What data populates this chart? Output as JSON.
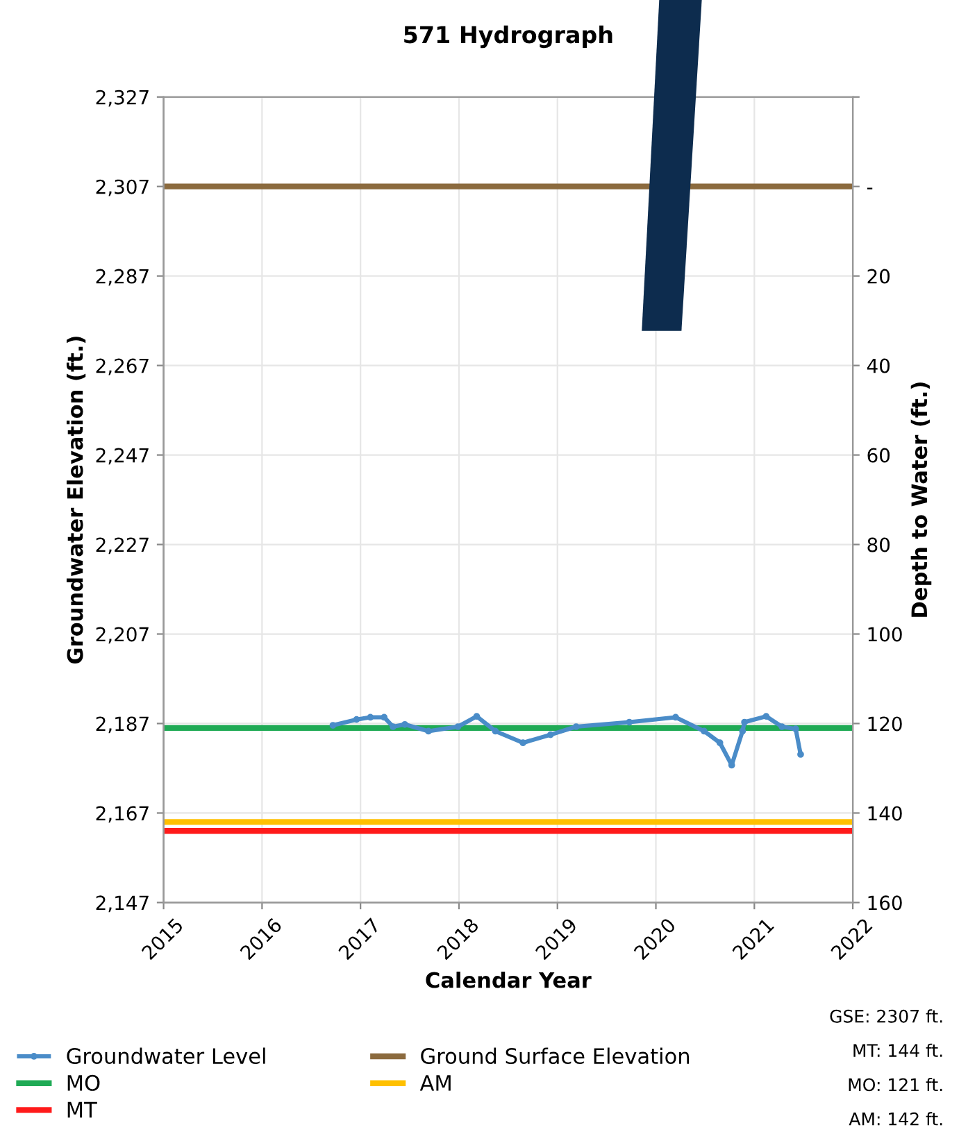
{
  "chart_data": {
    "type": "line",
    "title": "571 Hydrograph",
    "xlabel": "Calendar Year",
    "ylabel": "Groundwater Elevation (ft.)",
    "y2label": "Depth to Water (ft.)",
    "series": [
      {
        "name": "Groundwater Level",
        "color": "#4a8cc8",
        "marker": "circle",
        "x": [
          2016.72,
          2016.96,
          2017.1,
          2017.24,
          2017.33,
          2017.45,
          2017.69,
          2017.99,
          2018.18,
          2018.37,
          2018.65,
          2018.93,
          2019.19,
          2019.73,
          2020.2,
          2020.49,
          2020.65,
          2020.77,
          2020.88,
          2020.9,
          2021.12,
          2021.28,
          2021.42,
          2021.47
        ],
        "values": [
          2186.6,
          2187.9,
          2188.4,
          2188.4,
          2186.3,
          2186.8,
          2185.3,
          2186.3,
          2188.6,
          2185.3,
          2182.7,
          2184.5,
          2186.3,
          2187.3,
          2188.4,
          2185.3,
          2182.7,
          2177.7,
          2185.3,
          2187.3,
          2188.6,
          2186.3,
          2185.8,
          2180.1
        ]
      },
      {
        "name": "Ground Surface Elevation",
        "color": "#8b6a3e",
        "x": [
          2015,
          2022
        ],
        "values": [
          2307,
          2307
        ]
      },
      {
        "name": "MO",
        "color": "#1faa55",
        "x": [
          2015,
          2022
        ],
        "values": [
          2186,
          2186
        ]
      },
      {
        "name": "AM",
        "color": "#ffc000",
        "x": [
          2015,
          2022
        ],
        "values": [
          2165,
          2165
        ]
      },
      {
        "name": "MT",
        "color": "#ff1a1a",
        "x": [
          2015,
          2022
        ],
        "values": [
          2163,
          2163
        ]
      }
    ],
    "xlim": [
      2015,
      2022
    ],
    "xticks": [
      2015,
      2016,
      2017,
      2018,
      2019,
      2020,
      2021,
      2022
    ],
    "ylim": [
      2147,
      2327
    ],
    "yticks": [
      {
        "value": 2147,
        "label": "2,147"
      },
      {
        "value": 2167,
        "label": "2,167"
      },
      {
        "value": 2187,
        "label": "2,187"
      },
      {
        "value": 2207,
        "label": "2,207"
      },
      {
        "value": 2227,
        "label": "2,227"
      },
      {
        "value": 2247,
        "label": "2,247"
      },
      {
        "value": 2267,
        "label": "2,267"
      },
      {
        "value": 2287,
        "label": "2,287"
      },
      {
        "value": 2307,
        "label": "2,307"
      },
      {
        "value": 2327,
        "label": "2,327"
      }
    ],
    "y2lim": [
      160,
      -20
    ],
    "y2ticks": [
      {
        "value": -20,
        "label": null
      },
      {
        "value": 0,
        "label": "-"
      },
      20,
      40,
      60,
      80,
      100,
      120,
      140,
      160
    ],
    "grid": true,
    "legend": "bottom",
    "line_style": "solid",
    "annotations": [
      "GSE: 2307 ft.",
      "MT: 144 ft.",
      "MO: 121 ft.",
      "AM: 142 ft."
    ]
  }
}
